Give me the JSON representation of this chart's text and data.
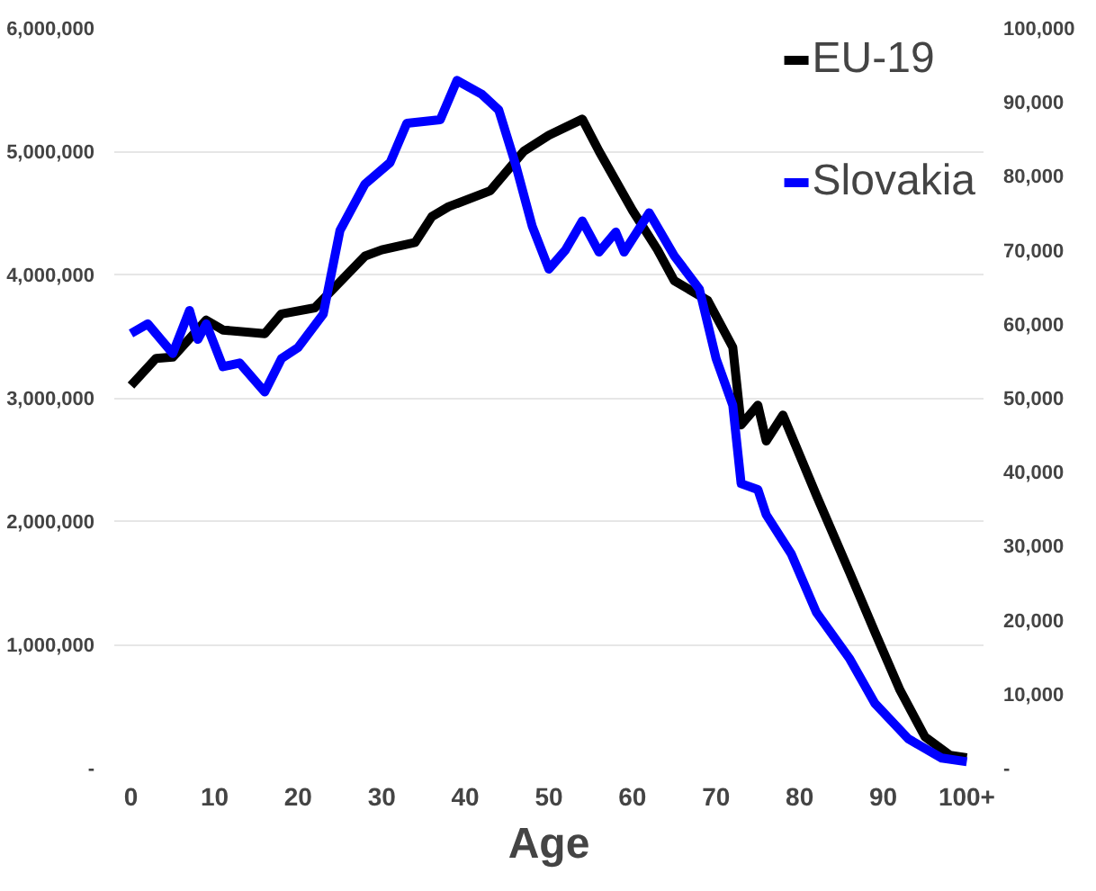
{
  "chart_data": {
    "type": "line",
    "xlabel": "Age",
    "xlim": [
      -2,
      102
    ],
    "xticks": [
      0,
      10,
      20,
      30,
      40,
      50,
      60,
      70,
      80,
      90,
      {
        "value": 100,
        "label": "100+"
      }
    ],
    "ylim": [
      0,
      6000000
    ],
    "yticks": [
      {
        "value": 0,
        "label": "-"
      },
      {
        "value": 1000000,
        "label": "1,000,000"
      },
      {
        "value": 2000000,
        "label": "2,000,000"
      },
      {
        "value": 3000000,
        "label": "3,000,000"
      },
      {
        "value": 4000000,
        "label": "4,000,000"
      },
      {
        "value": 5000000,
        "label": "5,000,000"
      },
      {
        "value": 6000000,
        "label": "6,000,000"
      }
    ],
    "y2lim": [
      0,
      100000
    ],
    "y2ticks": [
      {
        "value": 0,
        "label": "-"
      },
      {
        "value": 10000,
        "label": "10,000"
      },
      {
        "value": 20000,
        "label": "20,000"
      },
      {
        "value": 30000,
        "label": "30,000"
      },
      {
        "value": 40000,
        "label": "40,000"
      },
      {
        "value": 50000,
        "label": "50,000"
      },
      {
        "value": 60000,
        "label": "60,000"
      },
      {
        "value": 70000,
        "label": "70,000"
      },
      {
        "value": 80000,
        "label": "80,000"
      },
      {
        "value": 90000,
        "label": "90,000"
      },
      {
        "value": 100000,
        "label": "100,000"
      }
    ],
    "grid": "y",
    "legend": "top right",
    "marker": "none",
    "line_style": "solid",
    "series": [
      {
        "name": "EU-19",
        "color": "#000000",
        "x": [
          0,
          3,
          5,
          9,
          11,
          16,
          18,
          22,
          28,
          30,
          34,
          36,
          38,
          43,
          47,
          50,
          54,
          56,
          60,
          63,
          65,
          69,
          72,
          73,
          75,
          76,
          78,
          82,
          86,
          89,
          92,
          95,
          98,
          100
        ],
        "values": [
          3100000,
          3320000,
          3330000,
          3630000,
          3550000,
          3520000,
          3680000,
          3730000,
          4150000,
          4200000,
          4260000,
          4470000,
          4550000,
          4680000,
          5000000,
          5130000,
          5260000,
          5000000,
          4520000,
          4200000,
          3950000,
          3790000,
          3410000,
          2780000,
          2940000,
          2650000,
          2860000,
          2210000,
          1580000,
          1100000,
          630000,
          250000,
          100000,
          80000
        ]
      },
      {
        "name": "Slovakia",
        "color": "#0000ff",
        "axis": "y2",
        "x": [
          0,
          2,
          5,
          7,
          8,
          9,
          11,
          13,
          16,
          18,
          20,
          23,
          25,
          28,
          31,
          33,
          37,
          39,
          42,
          44,
          46,
          48,
          50,
          52,
          54,
          56,
          58,
          59,
          62,
          65,
          68,
          70,
          72,
          73,
          75,
          76,
          79,
          82,
          86,
          89,
          93,
          97,
          100
        ],
        "values": [
          58700,
          60000,
          56000,
          61800,
          57900,
          60000,
          54200,
          54700,
          50800,
          55300,
          56800,
          61300,
          72600,
          78900,
          81800,
          87100,
          87600,
          92900,
          91000,
          88900,
          81600,
          73200,
          67400,
          70000,
          73900,
          69700,
          72400,
          69700,
          75000,
          69200,
          64700,
          55300,
          49000,
          38400,
          37600,
          34200,
          28900,
          21000,
          14700,
          8700,
          3900,
          1300,
          800
        ]
      }
    ]
  }
}
